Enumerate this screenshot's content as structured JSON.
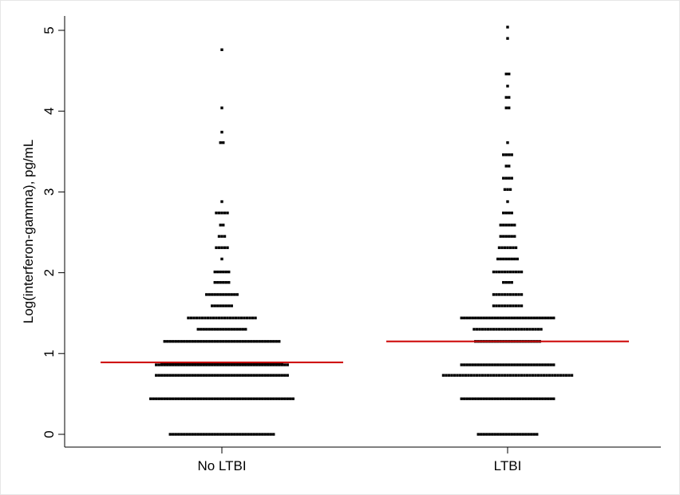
{
  "chart_data": {
    "type": "scatter",
    "subtype": "dot-strip",
    "title": "",
    "xlabel": "",
    "ylabel": "Log(interferon-gamma), pg/mL",
    "ylim": [
      0,
      5
    ],
    "yticks": [
      "0",
      "1",
      "2",
      "3",
      "4",
      "5"
    ],
    "categories": [
      "No LTBI",
      "LTBI"
    ],
    "grid": false,
    "legend": "none",
    "colors": {
      "points": "#000000",
      "median_line": "#cc0000"
    },
    "series": [
      {
        "category": "No LTBI",
        "median": 0.89,
        "rows": [
          {
            "y": 0.0,
            "count": 38
          },
          {
            "y": 0.44,
            "count": 52
          },
          {
            "y": 0.73,
            "count": 48
          },
          {
            "y": 0.86,
            "count": 48
          },
          {
            "y": 0.88,
            "count": 44
          },
          {
            "y": 1.15,
            "count": 42
          },
          {
            "y": 1.3,
            "count": 18
          },
          {
            "y": 1.44,
            "count": 25
          },
          {
            "y": 1.59,
            "count": 8
          },
          {
            "y": 1.73,
            "count": 12
          },
          {
            "y": 1.88,
            "count": 6
          },
          {
            "y": 2.01,
            "count": 6
          },
          {
            "y": 2.17,
            "count": 1
          },
          {
            "y": 2.31,
            "count": 5
          },
          {
            "y": 2.45,
            "count": 3
          },
          {
            "y": 2.59,
            "count": 2
          },
          {
            "y": 2.74,
            "count": 5
          },
          {
            "y": 2.88,
            "count": 1
          },
          {
            "y": 3.61,
            "count": 2
          },
          {
            "y": 3.74,
            "count": 1
          },
          {
            "y": 4.04,
            "count": 1
          },
          {
            "y": 4.76,
            "count": 1
          }
        ]
      },
      {
        "category": "LTBI",
        "median": 1.15,
        "rows": [
          {
            "y": 0.0,
            "count": 22
          },
          {
            "y": 0.44,
            "count": 34
          },
          {
            "y": 0.73,
            "count": 47
          },
          {
            "y": 0.86,
            "count": 34
          },
          {
            "y": 1.15,
            "count": 24
          },
          {
            "y": 1.3,
            "count": 25
          },
          {
            "y": 1.44,
            "count": 34
          },
          {
            "y": 1.59,
            "count": 11
          },
          {
            "y": 1.73,
            "count": 11
          },
          {
            "y": 1.88,
            "count": 4
          },
          {
            "y": 2.01,
            "count": 11
          },
          {
            "y": 2.17,
            "count": 8
          },
          {
            "y": 2.31,
            "count": 7
          },
          {
            "y": 2.45,
            "count": 6
          },
          {
            "y": 2.59,
            "count": 6
          },
          {
            "y": 2.74,
            "count": 4
          },
          {
            "y": 2.88,
            "count": 1
          },
          {
            "y": 3.03,
            "count": 3
          },
          {
            "y": 3.17,
            "count": 4
          },
          {
            "y": 3.32,
            "count": 2
          },
          {
            "y": 3.46,
            "count": 4
          },
          {
            "y": 3.61,
            "count": 1
          },
          {
            "y": 4.04,
            "count": 2
          },
          {
            "y": 4.17,
            "count": 2
          },
          {
            "y": 4.31,
            "count": 1
          },
          {
            "y": 4.46,
            "count": 2
          },
          {
            "y": 4.9,
            "count": 1
          },
          {
            "y": 5.04,
            "count": 1
          }
        ]
      }
    ]
  }
}
